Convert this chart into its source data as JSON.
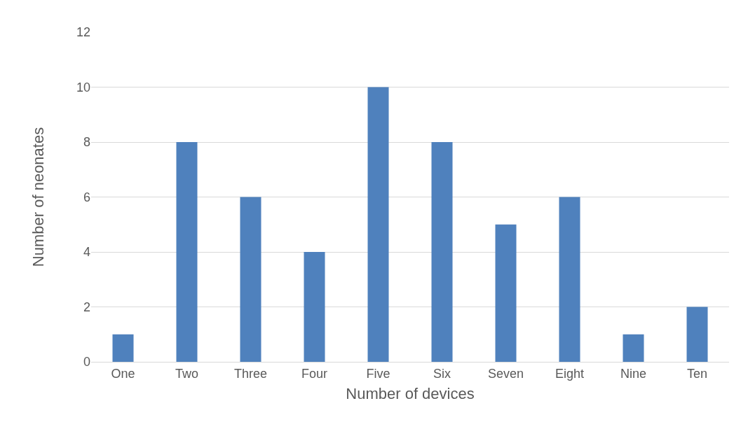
{
  "chart_data": {
    "type": "bar",
    "xlabel": "Number of devices",
    "ylabel": "Number of neonates",
    "categories": [
      "One",
      "Two",
      "Three",
      "Four",
      "Five",
      "Six",
      "Seven",
      "Eight",
      "Nine",
      "Ten"
    ],
    "values": [
      1,
      8,
      6,
      4,
      10,
      8,
      5,
      6,
      1,
      2
    ],
    "color": "#4f81bd",
    "ylim": [
      0,
      12
    ],
    "yticks": [
      0,
      2,
      4,
      6,
      8,
      10,
      12
    ],
    "grid": "y",
    "legend": false
  }
}
